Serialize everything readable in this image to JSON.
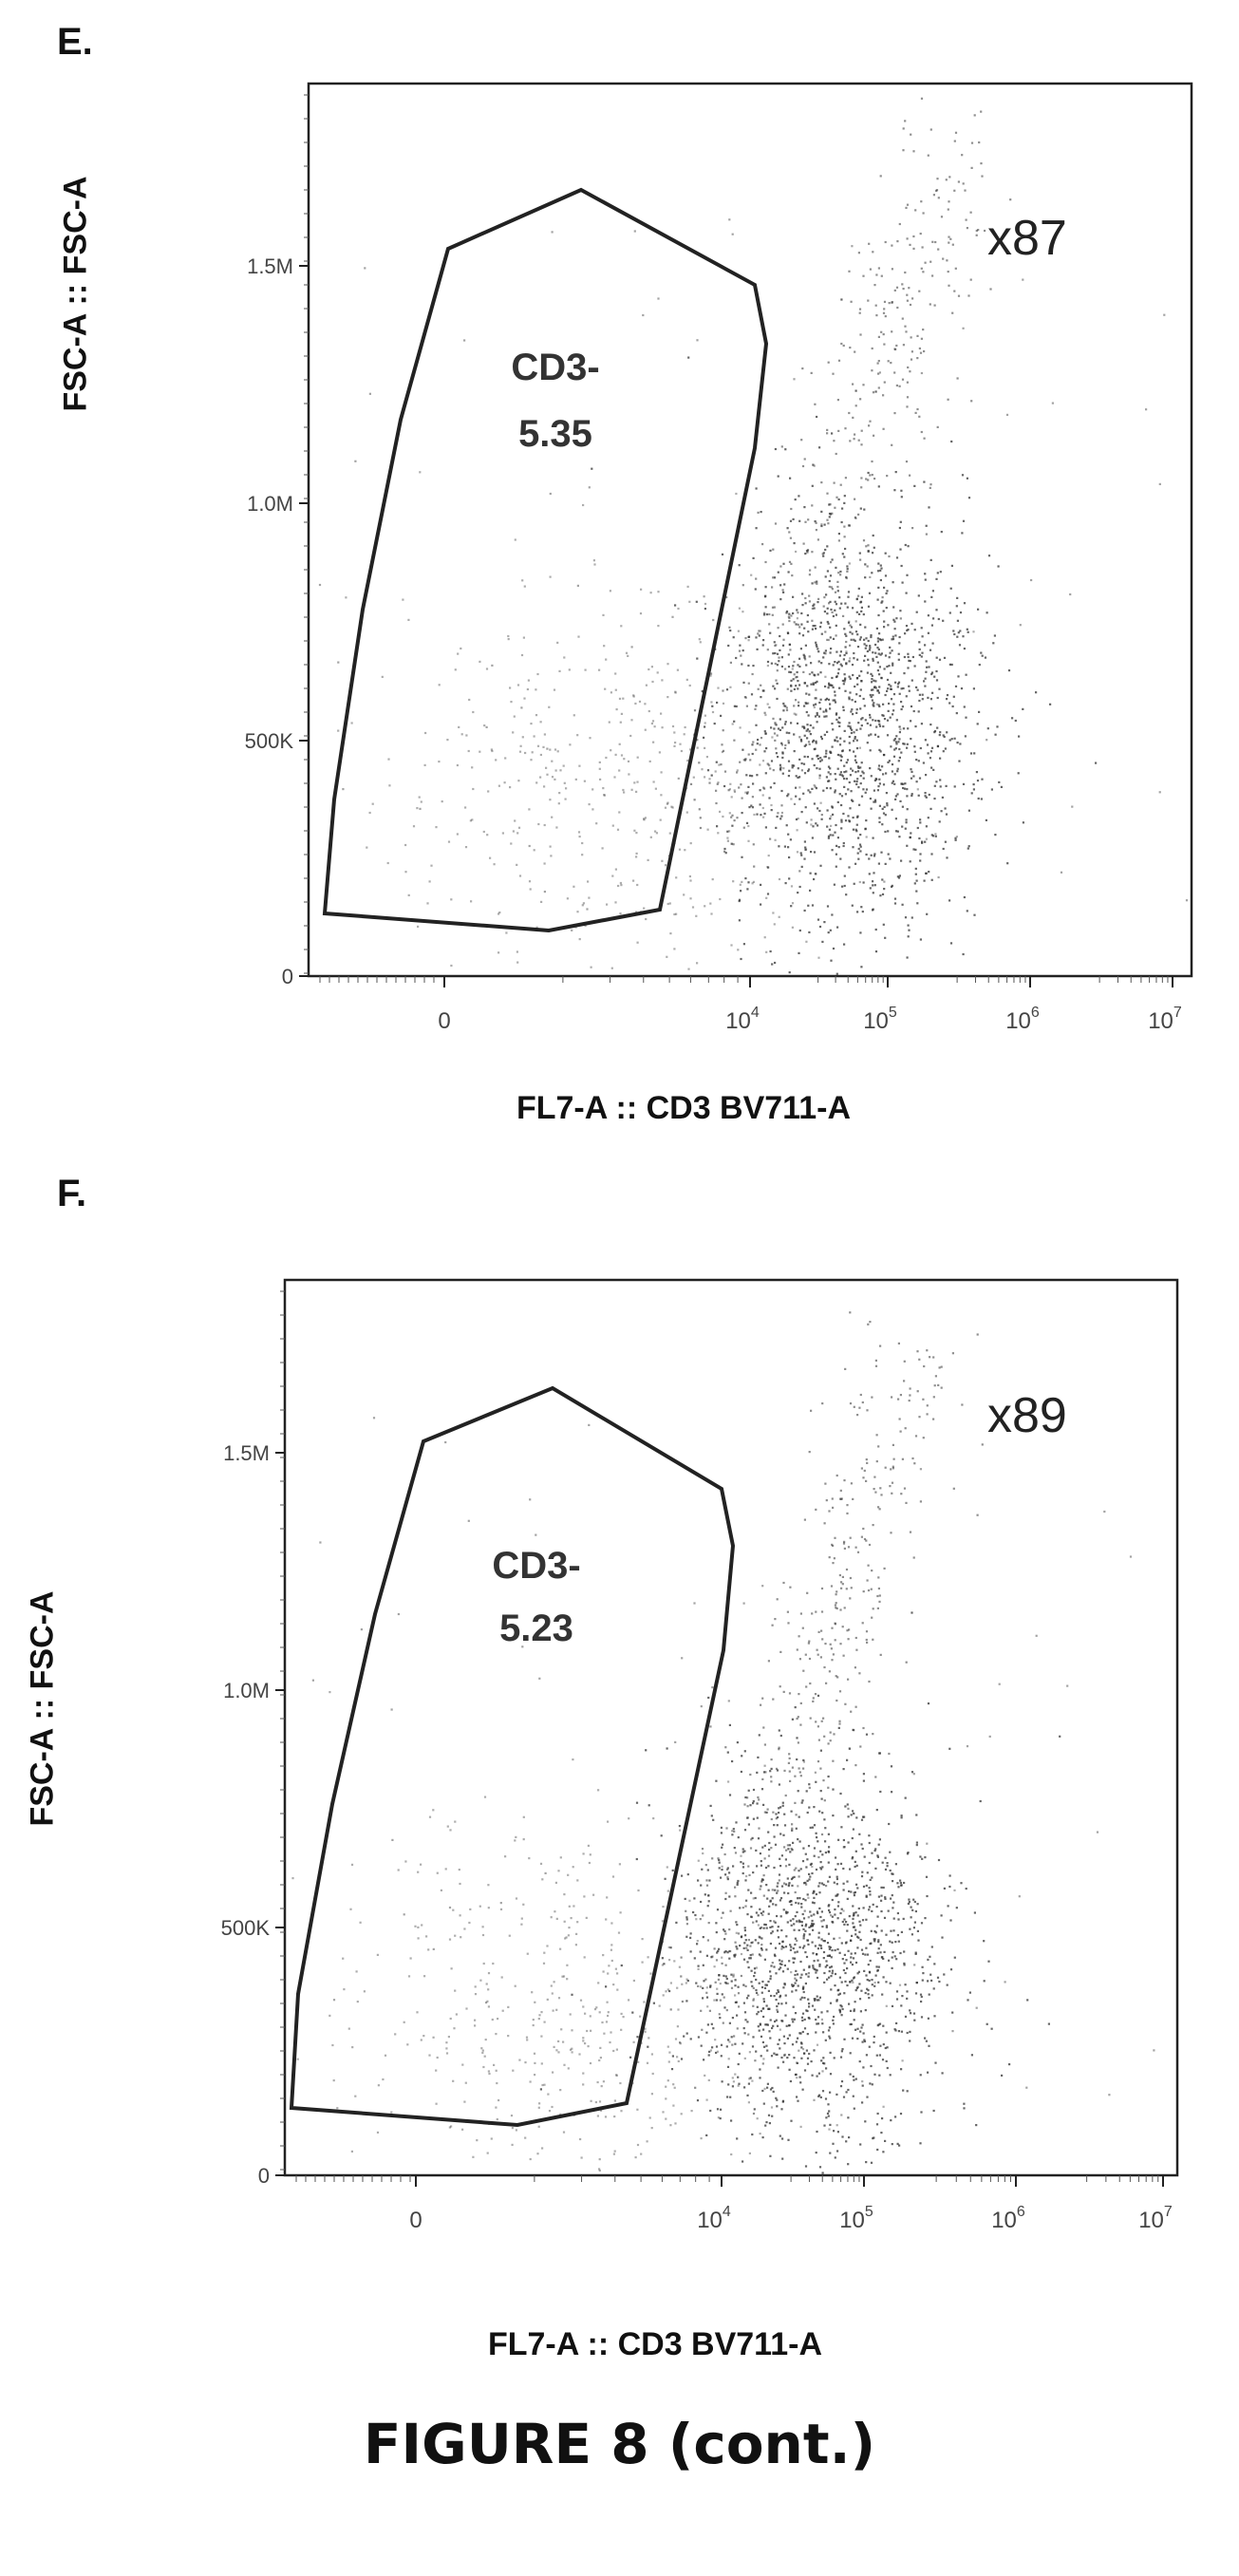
{
  "figure_caption": "FIGURE 8 (cont.)",
  "chart_data": [
    {
      "type": "scatter",
      "panel": "E.",
      "xlabel": "FL7-A :: CD3 BV711-A",
      "ylabel": "FSC-A :: FSC-A",
      "x_scale": "biexponential",
      "x_ticks": [
        "0",
        "10^4",
        "10^5",
        "10^6",
        "10^7"
      ],
      "y_ticks": [
        "0",
        "500K",
        "1.0M",
        "1.5M"
      ],
      "ylim": [
        0,
        1750000
      ],
      "grid": false,
      "corner_label": "x87",
      "gate": {
        "name": "CD3-",
        "value": "5.35"
      },
      "point_color": "#333333"
    },
    {
      "type": "scatter",
      "panel": "F.",
      "xlabel": "FL7-A :: CD3 BV711-A",
      "ylabel": "FSC-A :: FSC-A",
      "x_scale": "biexponential",
      "x_ticks": [
        "0",
        "10^4",
        "10^5",
        "10^6",
        "10^7"
      ],
      "y_ticks": [
        "0",
        "500K",
        "1.0M",
        "1.5M"
      ],
      "ylim": [
        0,
        1750000
      ],
      "grid": false,
      "corner_label": "x89",
      "gate": {
        "name": "CD3-",
        "value": "5.23"
      },
      "point_color": "#333333"
    }
  ]
}
